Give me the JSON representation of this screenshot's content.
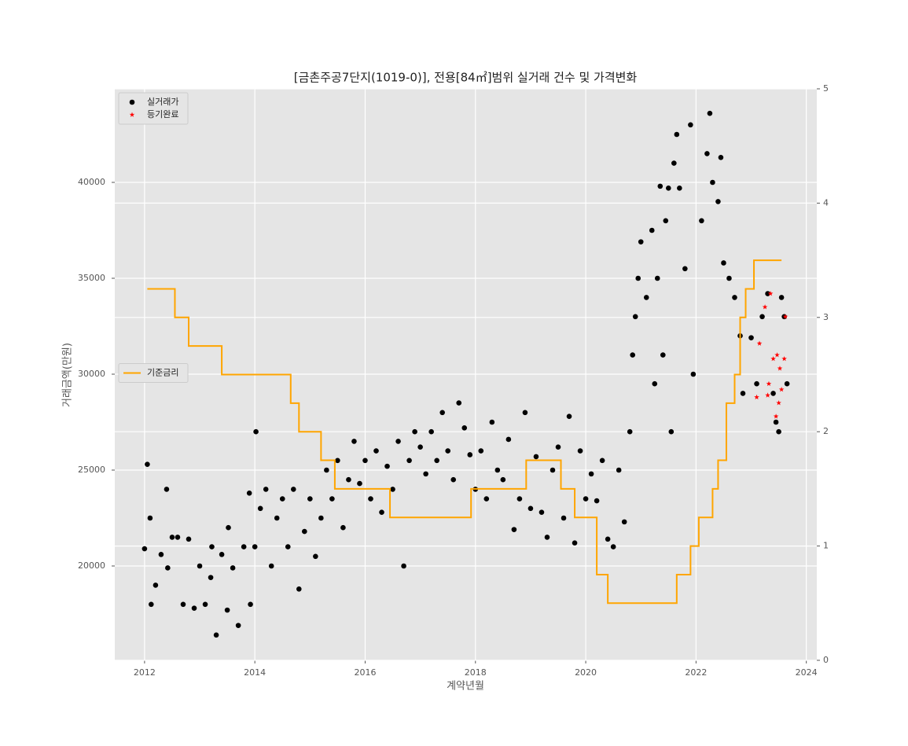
{
  "chart_data": {
    "type": "scatter",
    "title": "[금촌주공7단지(1019-0)], 전용[84㎡]범위 실거래 건수 및 가격변화",
    "x_label": "계약년월",
    "y_label": "거래금액(만원)",
    "xlim": [
      2011.46,
      2024.19
    ],
    "xticks": [
      2012,
      2014,
      2016,
      2018,
      2020,
      2022,
      2024
    ],
    "ylim": [
      15082,
      44877
    ],
    "yticks": [
      20000,
      25000,
      30000,
      35000,
      40000
    ],
    "y2lim": [
      0,
      5
    ],
    "y2ticks": [
      0,
      1,
      2,
      3,
      4,
      5
    ],
    "grid": true,
    "legend": "upper left",
    "legend2": "center left",
    "series": [
      {
        "name": "실거래가",
        "color": "#000000",
        "marker": "circle",
        "x": [
          2012.0,
          2012.05,
          2012.1,
          2012.12,
          2012.2,
          2012.3,
          2012.4,
          2012.42,
          2012.5,
          2012.6,
          2012.7,
          2012.8,
          2012.9,
          2013.0,
          2013.1,
          2013.2,
          2013.22,
          2013.3,
          2013.4,
          2013.5,
          2013.52,
          2013.6,
          2013.7,
          2013.8,
          2013.9,
          2013.92,
          2014.0,
          2014.02,
          2014.1,
          2014.2,
          2014.3,
          2014.4,
          2014.5,
          2014.6,
          2014.7,
          2014.8,
          2014.9,
          2015.0,
          2015.1,
          2015.2,
          2015.3,
          2015.4,
          2015.5,
          2015.6,
          2015.7,
          2015.8,
          2015.9,
          2016.0,
          2016.1,
          2016.2,
          2016.3,
          2016.4,
          2016.5,
          2016.6,
          2016.7,
          2016.8,
          2016.9,
          2017.0,
          2017.1,
          2017.2,
          2017.3,
          2017.4,
          2017.5,
          2017.6,
          2017.7,
          2017.8,
          2017.9,
          2018.0,
          2018.1,
          2018.2,
          2018.3,
          2018.4,
          2018.5,
          2018.6,
          2018.7,
          2018.8,
          2018.9,
          2019.0,
          2019.1,
          2019.2,
          2019.3,
          2019.4,
          2019.5,
          2019.6,
          2019.7,
          2019.8,
          2019.9,
          2020.0,
          2020.1,
          2020.2,
          2020.3,
          2020.4,
          2020.5,
          2020.6,
          2020.7,
          2020.8,
          2020.85,
          2020.9,
          2020.95,
          2021.0,
          2021.1,
          2021.2,
          2021.25,
          2021.3,
          2021.35,
          2021.4,
          2021.45,
          2021.5,
          2021.55,
          2021.6,
          2021.65,
          2021.7,
          2021.8,
          2021.9,
          2021.95,
          2022.1,
          2022.2,
          2022.25,
          2022.3,
          2022.4,
          2022.45,
          2022.5,
          2022.6,
          2022.7,
          2022.8,
          2022.85,
          2023.0,
          2023.1,
          2023.2,
          2023.3,
          2023.4,
          2023.45,
          2023.5,
          2023.55,
          2023.6,
          2023.65
        ],
        "values": [
          20900,
          25300,
          22500,
          18000,
          19000,
          20600,
          24000,
          19900,
          21500,
          21500,
          18000,
          21400,
          17800,
          20000,
          18000,
          19400,
          21000,
          16400,
          20600,
          17700,
          22000,
          19900,
          16900,
          21000,
          23800,
          18000,
          21000,
          27000,
          23000,
          24000,
          20000,
          22500,
          23500,
          21000,
          24000,
          18800,
          21800,
          23500,
          20500,
          22500,
          25000,
          23500,
          25500,
          22000,
          24500,
          26500,
          24300,
          25500,
          23500,
          26000,
          22800,
          25200,
          24000,
          26500,
          20000,
          25500,
          27000,
          26200,
          24800,
          27000,
          25500,
          28000,
          26000,
          24500,
          28500,
          27200,
          25800,
          24000,
          26000,
          23500,
          27500,
          25000,
          24500,
          26600,
          21900,
          23500,
          28000,
          23000,
          25700,
          22800,
          21500,
          25000,
          26200,
          22500,
          27800,
          21200,
          26000,
          23500,
          24800,
          23400,
          25500,
          21400,
          21000,
          25000,
          22300,
          27000,
          31000,
          33000,
          35000,
          36900,
          34000,
          37500,
          29500,
          35000,
          39800,
          31000,
          38000,
          39700,
          27000,
          41000,
          42500,
          39700,
          35500,
          43000,
          30000,
          38000,
          41500,
          43600,
          40000,
          39000,
          41300,
          35800,
          35000,
          34000,
          32000,
          29000,
          31900,
          29500,
          33000,
          34200,
          29000,
          27500,
          27000,
          34000,
          33000,
          29500
        ]
      },
      {
        "name": "등기완료",
        "color": "#ff0000",
        "marker": "star",
        "x": [
          2023.1,
          2023.15,
          2023.25,
          2023.3,
          2023.32,
          2023.35,
          2023.4,
          2023.45,
          2023.47,
          2023.5,
          2023.52,
          2023.55,
          2023.6,
          2023.62
        ],
        "values": [
          28800,
          31600,
          33500,
          28900,
          29500,
          34200,
          30800,
          27800,
          31000,
          28500,
          30300,
          29200,
          30800,
          33000
        ]
      },
      {
        "name": "기준금리",
        "color": "#ffa500",
        "type": "line",
        "axis": "y2",
        "drawstyle": "steps-post",
        "x": [
          2012.05,
          2012.55,
          2012.8,
          2013.4,
          2014.65,
          2014.8,
          2015.2,
          2015.45,
          2016.45,
          2017.92,
          2018.92,
          2019.55,
          2019.8,
          2020.2,
          2020.4,
          2021.65,
          2021.9,
          2022.05,
          2022.3,
          2022.4,
          2022.55,
          2022.7,
          2022.8,
          2022.9,
          2023.05,
          2023.55
        ],
        "values": [
          3.25,
          3.0,
          2.75,
          2.5,
          2.25,
          2.0,
          1.75,
          1.5,
          1.25,
          1.5,
          1.75,
          1.5,
          1.25,
          0.75,
          0.5,
          0.75,
          1.0,
          1.25,
          1.5,
          1.75,
          2.25,
          2.5,
          3.0,
          3.25,
          3.5,
          3.5
        ]
      }
    ]
  }
}
